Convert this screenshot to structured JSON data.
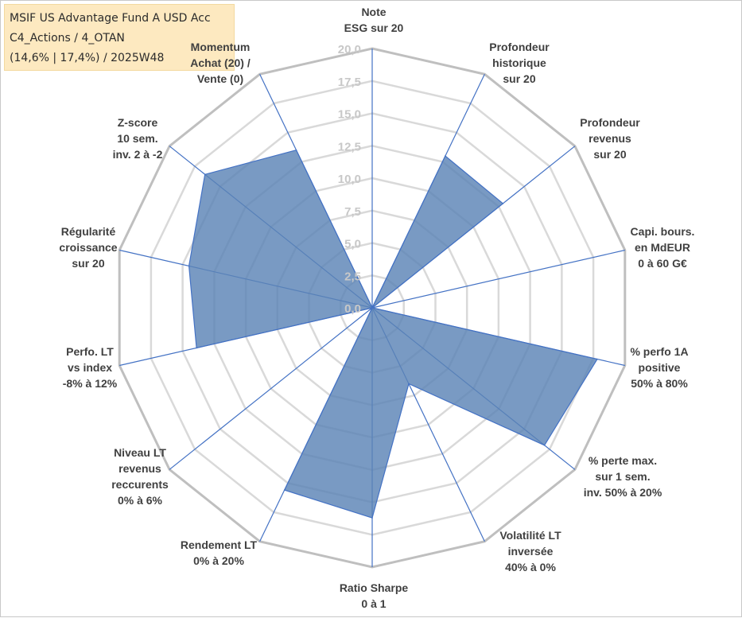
{
  "chart_data": {
    "type": "radar",
    "title_lines": [
      "MSIF US Advantage Fund A USD Acc",
      "C4_Actions / 4_OTAN",
      "(14,6% | 17,4%) / 2025W48"
    ],
    "rlim": [
      0,
      20
    ],
    "ticks": [
      "0,0",
      "2,5",
      "5,0",
      "7,5",
      "10,0",
      "12,5",
      "15,0",
      "17,5",
      "20,0"
    ],
    "tick_values": [
      0,
      2.5,
      5,
      7.5,
      10,
      12.5,
      15,
      17.5,
      20
    ],
    "grid": true,
    "categories": [
      [
        "Note",
        "ESG sur 20"
      ],
      [
        "Profondeur",
        "historique",
        "sur 20"
      ],
      [
        "Profondeur",
        "revenus",
        "sur 20"
      ],
      [
        "Capi. bours.",
        "en MdEUR",
        "0 à 60 G€"
      ],
      [
        "% perfo 1A",
        "positive",
        "50% à 80%"
      ],
      [
        "% perte max.",
        "sur 1 sem.",
        "inv. 50% à 20%"
      ],
      [
        "Volatilité LT",
        "inversée",
        "40% à 0%"
      ],
      [
        "Ratio Sharpe",
        "0 à 1"
      ],
      [
        "Rendement LT",
        "0% à 20%"
      ],
      [
        "Niveau LT",
        "revenus",
        "reccurents",
        "0% à 6%"
      ],
      [
        "Perfo. LT",
        "vs index",
        "-8% à 12%"
      ],
      [
        "Régularité",
        "croissance",
        "sur 20"
      ],
      [
        "Z-score",
        "10 sem.",
        "inv. 2 à -2"
      ],
      [
        "Momentum",
        "Achat (20) /",
        "Vente (0)"
      ]
    ],
    "series": [
      {
        "name": "MSIF US Advantage Fund A USD Acc",
        "color": "#5b84b6",
        "line_color": "#4472c4",
        "values": [
          0,
          13.0,
          12.9,
          0,
          17.8,
          17.0,
          6.5,
          16.2,
          15.6,
          0,
          13.9,
          14.5,
          16.5,
          13.5
        ]
      }
    ]
  }
}
